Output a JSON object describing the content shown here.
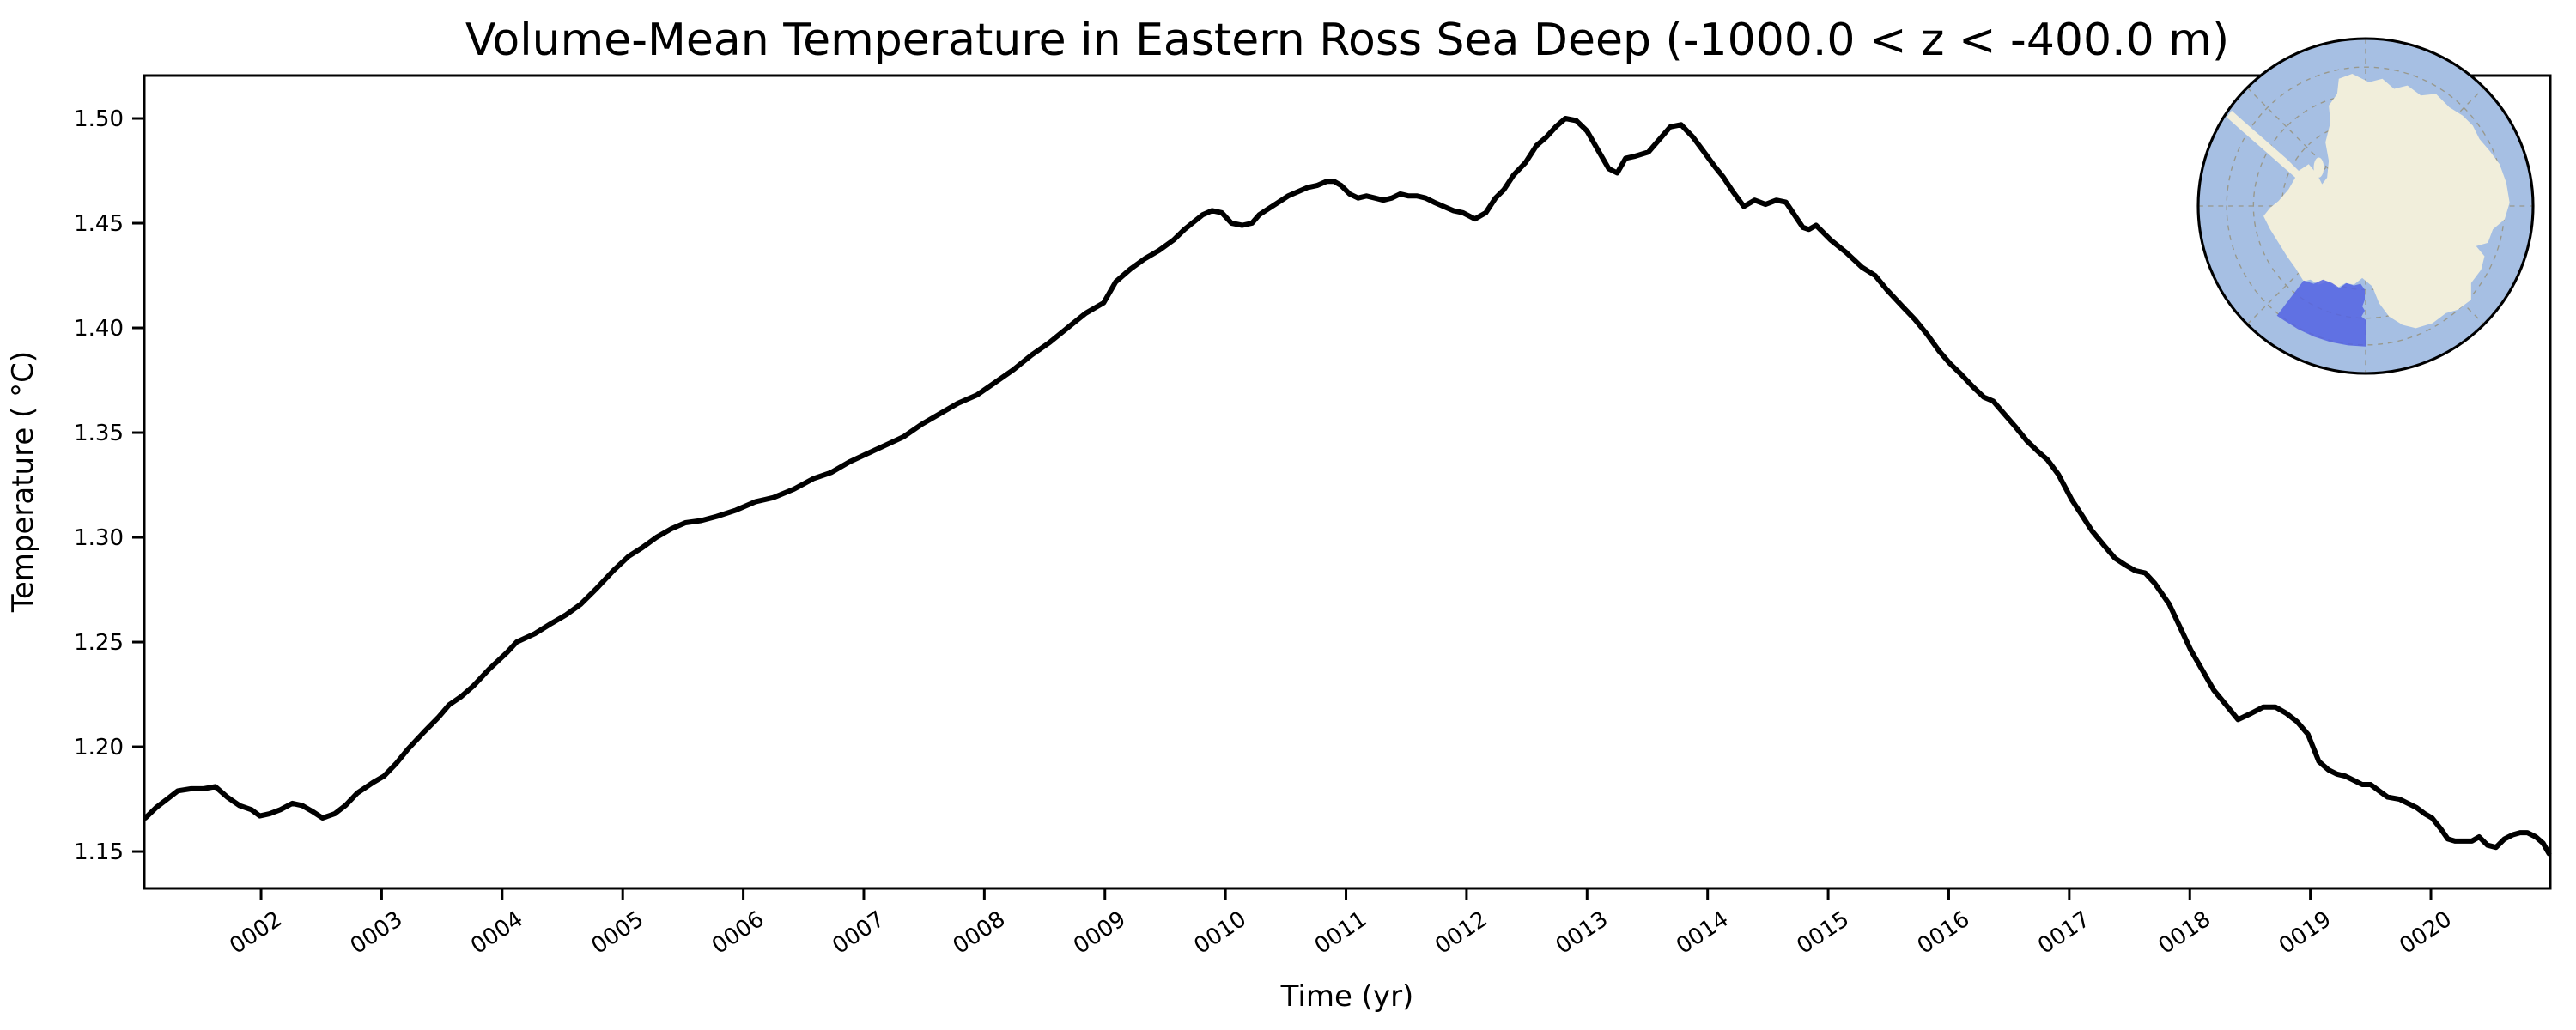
{
  "chart_data": {
    "type": "line",
    "title": "Volume-Mean Temperature in Eastern Ross Sea Deep (-1000.0 < z < -400.0 m)",
    "xlabel": "Time (yr)",
    "ylabel": "Temperature ( °C)",
    "xlim": [
      1.031,
      20.99
    ],
    "ylim": [
      1.1324,
      1.5205
    ],
    "grid": false,
    "legend": "none",
    "line_color": "#000000",
    "background_color": "#ffffff",
    "x_ticks": {
      "values": [
        2,
        3,
        4,
        5,
        6,
        7,
        8,
        9,
        10,
        11,
        12,
        13,
        14,
        15,
        16,
        17,
        18,
        19,
        20
      ],
      "labels": [
        "0002",
        "0003",
        "0004",
        "0005",
        "0006",
        "0007",
        "0008",
        "0009",
        "0010",
        "0011",
        "0012",
        "0013",
        "0014",
        "0015",
        "0016",
        "0017",
        "0018",
        "0019",
        "0020"
      ]
    },
    "y_ticks": {
      "values": [
        1.15,
        1.2,
        1.25,
        1.3,
        1.35,
        1.4,
        1.45,
        1.5
      ],
      "labels": [
        "1.15",
        "1.20",
        "1.25",
        "1.30",
        "1.35",
        "1.40",
        "1.45",
        "1.50"
      ]
    },
    "series": [
      {
        "name": "volume-mean-temperature",
        "units_x": "model year",
        "units_y": "degC",
        "points": [
          [
            1.04,
            1.166
          ],
          [
            1.13,
            1.171
          ],
          [
            1.22,
            1.175
          ],
          [
            1.31,
            1.179
          ],
          [
            1.42,
            1.18
          ],
          [
            1.52,
            1.18
          ],
          [
            1.62,
            1.181
          ],
          [
            1.72,
            1.176
          ],
          [
            1.82,
            1.172
          ],
          [
            1.92,
            1.17
          ],
          [
            1.99,
            1.167
          ],
          [
            2.07,
            1.168
          ],
          [
            2.16,
            1.17
          ],
          [
            2.26,
            1.173
          ],
          [
            2.34,
            1.172
          ],
          [
            2.43,
            1.169
          ],
          [
            2.51,
            1.166
          ],
          [
            2.61,
            1.168
          ],
          [
            2.7,
            1.172
          ],
          [
            2.8,
            1.178
          ],
          [
            2.93,
            1.183
          ],
          [
            3.02,
            1.186
          ],
          [
            3.12,
            1.192
          ],
          [
            3.22,
            1.199
          ],
          [
            3.35,
            1.207
          ],
          [
            3.47,
            1.214
          ],
          [
            3.56,
            1.22
          ],
          [
            3.66,
            1.224
          ],
          [
            3.76,
            1.229
          ],
          [
            3.89,
            1.237
          ],
          [
            4.04,
            1.245
          ],
          [
            4.12,
            1.25
          ],
          [
            4.27,
            1.254
          ],
          [
            4.41,
            1.259
          ],
          [
            4.53,
            1.263
          ],
          [
            4.65,
            1.268
          ],
          [
            4.79,
            1.276
          ],
          [
            4.92,
            1.284
          ],
          [
            5.05,
            1.291
          ],
          [
            5.16,
            1.295
          ],
          [
            5.28,
            1.3
          ],
          [
            5.4,
            1.304
          ],
          [
            5.52,
            1.307
          ],
          [
            5.65,
            1.308
          ],
          [
            5.78,
            1.31
          ],
          [
            5.94,
            1.313
          ],
          [
            6.1,
            1.317
          ],
          [
            6.25,
            1.319
          ],
          [
            6.42,
            1.323
          ],
          [
            6.58,
            1.328
          ],
          [
            6.73,
            1.331
          ],
          [
            6.88,
            1.336
          ],
          [
            7.03,
            1.34
          ],
          [
            7.18,
            1.344
          ],
          [
            7.33,
            1.348
          ],
          [
            7.48,
            1.354
          ],
          [
            7.63,
            1.359
          ],
          [
            7.78,
            1.364
          ],
          [
            7.94,
            1.368
          ],
          [
            8.09,
            1.374
          ],
          [
            8.24,
            1.38
          ],
          [
            8.39,
            1.387
          ],
          [
            8.54,
            1.393
          ],
          [
            8.69,
            1.4
          ],
          [
            8.84,
            1.407
          ],
          [
            8.99,
            1.412
          ],
          [
            9.09,
            1.422
          ],
          [
            9.21,
            1.428
          ],
          [
            9.33,
            1.433
          ],
          [
            9.45,
            1.437
          ],
          [
            9.57,
            1.442
          ],
          [
            9.66,
            1.447
          ],
          [
            9.81,
            1.454
          ],
          [
            9.89,
            1.456
          ],
          [
            9.97,
            1.455
          ],
          [
            10.05,
            1.45
          ],
          [
            10.14,
            1.449
          ],
          [
            10.22,
            1.45
          ],
          [
            10.28,
            1.454
          ],
          [
            10.36,
            1.457
          ],
          [
            10.44,
            1.46
          ],
          [
            10.52,
            1.463
          ],
          [
            10.6,
            1.465
          ],
          [
            10.68,
            1.467
          ],
          [
            10.76,
            1.468
          ],
          [
            10.84,
            1.47
          ],
          [
            10.9,
            1.47
          ],
          [
            10.96,
            1.468
          ],
          [
            11.03,
            1.464
          ],
          [
            11.1,
            1.462
          ],
          [
            11.17,
            1.463
          ],
          [
            11.24,
            1.462
          ],
          [
            11.31,
            1.461
          ],
          [
            11.38,
            1.462
          ],
          [
            11.45,
            1.464
          ],
          [
            11.52,
            1.463
          ],
          [
            11.59,
            1.463
          ],
          [
            11.66,
            1.462
          ],
          [
            11.73,
            1.46
          ],
          [
            11.81,
            1.458
          ],
          [
            11.89,
            1.456
          ],
          [
            11.97,
            1.455
          ],
          [
            12.07,
            1.452
          ],
          [
            12.16,
            1.455
          ],
          [
            12.24,
            1.462
          ],
          [
            12.31,
            1.466
          ],
          [
            12.39,
            1.473
          ],
          [
            12.49,
            1.479
          ],
          [
            12.58,
            1.487
          ],
          [
            12.66,
            1.491
          ],
          [
            12.74,
            1.496
          ],
          [
            12.82,
            1.5
          ],
          [
            12.91,
            1.499
          ],
          [
            13.0,
            1.494
          ],
          [
            13.1,
            1.484
          ],
          [
            13.18,
            1.476
          ],
          [
            13.25,
            1.474
          ],
          [
            13.32,
            1.481
          ],
          [
            13.4,
            1.482
          ],
          [
            13.51,
            1.484
          ],
          [
            13.6,
            1.49
          ],
          [
            13.69,
            1.496
          ],
          [
            13.78,
            1.497
          ],
          [
            13.88,
            1.491
          ],
          [
            13.97,
            1.484
          ],
          [
            14.06,
            1.477
          ],
          [
            14.13,
            1.472
          ],
          [
            14.21,
            1.465
          ],
          [
            14.3,
            1.458
          ],
          [
            14.39,
            1.461
          ],
          [
            14.48,
            1.459
          ],
          [
            14.57,
            1.461
          ],
          [
            14.65,
            1.46
          ],
          [
            14.72,
            1.454
          ],
          [
            14.79,
            1.448
          ],
          [
            14.84,
            1.447
          ],
          [
            14.9,
            1.449
          ],
          [
            15.02,
            1.442
          ],
          [
            15.15,
            1.436
          ],
          [
            15.28,
            1.429
          ],
          [
            15.39,
            1.425
          ],
          [
            15.49,
            1.418
          ],
          [
            15.62,
            1.41
          ],
          [
            15.72,
            1.404
          ],
          [
            15.82,
            1.397
          ],
          [
            15.92,
            1.389
          ],
          [
            16.01,
            1.383
          ],
          [
            16.1,
            1.378
          ],
          [
            16.2,
            1.372
          ],
          [
            16.29,
            1.367
          ],
          [
            16.37,
            1.365
          ],
          [
            16.46,
            1.359
          ],
          [
            16.55,
            1.353
          ],
          [
            16.65,
            1.346
          ],
          [
            16.74,
            1.341
          ],
          [
            16.82,
            1.337
          ],
          [
            16.91,
            1.33
          ],
          [
            17.02,
            1.318
          ],
          [
            17.1,
            1.311
          ],
          [
            17.19,
            1.303
          ],
          [
            17.29,
            1.296
          ],
          [
            17.38,
            1.29
          ],
          [
            17.46,
            1.287
          ],
          [
            17.55,
            1.284
          ],
          [
            17.63,
            1.283
          ],
          [
            17.71,
            1.278
          ],
          [
            17.83,
            1.268
          ],
          [
            17.92,
            1.257
          ],
          [
            18.01,
            1.246
          ],
          [
            18.1,
            1.237
          ],
          [
            18.2,
            1.227
          ],
          [
            18.3,
            1.22
          ],
          [
            18.4,
            1.213
          ],
          [
            18.51,
            1.216
          ],
          [
            18.61,
            1.219
          ],
          [
            18.71,
            1.219
          ],
          [
            18.8,
            1.216
          ],
          [
            18.89,
            1.212
          ],
          [
            18.98,
            1.206
          ],
          [
            19.07,
            1.193
          ],
          [
            19.15,
            1.189
          ],
          [
            19.22,
            1.187
          ],
          [
            19.29,
            1.186
          ],
          [
            19.36,
            1.184
          ],
          [
            19.43,
            1.182
          ],
          [
            19.5,
            1.182
          ],
          [
            19.57,
            1.179
          ],
          [
            19.64,
            1.176
          ],
          [
            19.74,
            1.175
          ],
          [
            19.81,
            1.173
          ],
          [
            19.88,
            1.171
          ],
          [
            19.95,
            1.168
          ],
          [
            20.01,
            1.166
          ],
          [
            20.08,
            1.161
          ],
          [
            20.14,
            1.156
          ],
          [
            20.2,
            1.155
          ],
          [
            20.27,
            1.155
          ],
          [
            20.34,
            1.155
          ],
          [
            20.4,
            1.157
          ],
          [
            20.47,
            1.153
          ],
          [
            20.54,
            1.152
          ],
          [
            20.61,
            1.156
          ],
          [
            20.68,
            1.158
          ],
          [
            20.74,
            1.159
          ],
          [
            20.8,
            1.159
          ],
          [
            20.87,
            1.157
          ],
          [
            20.93,
            1.154
          ],
          [
            20.98,
            1.149
          ]
        ]
      }
    ]
  },
  "inset_map": {
    "description": "south-polar orthographic map of Antarctica with Eastern Ross Sea region highlighted",
    "ocean_color": "#a6bfe3",
    "land_color": "#f1eedb",
    "land_edge_color": "#c9c5ad",
    "region_fill_color": "#5463e3",
    "region_border_color": "#2b36d0",
    "graticule_color": "#98988c",
    "border_color": "#000000"
  }
}
